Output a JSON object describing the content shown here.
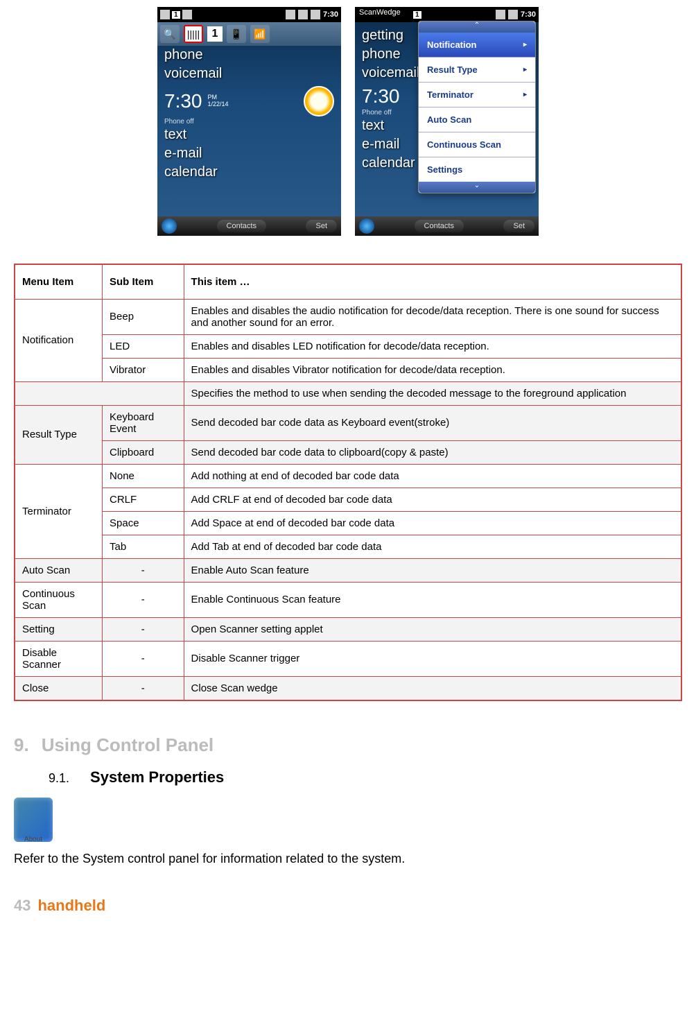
{
  "colors": {
    "table_border": "#c44",
    "heading_gray": "#bbbbbb",
    "brand_orange": "#e67817",
    "dropdown_item": "#1a3a8a",
    "dropdown_sel_bg_top": "#4a7aea",
    "dropdown_sel_bg_bot": "#2a4ab8"
  },
  "phones": {
    "statusbar": {
      "num1": "1",
      "time": "7:30"
    },
    "toolbar_num": "1",
    "home": {
      "items_top": [
        "phone",
        "voicemail"
      ],
      "time": "7:30",
      "pm": "PM",
      "date": "1/22/14",
      "phone_off": "Phone off",
      "items_bottom": [
        "text",
        "e-mail",
        "calendar"
      ]
    },
    "softbar": {
      "left": "Contacts",
      "right": "Set"
    },
    "right": {
      "title": "ScanWedge",
      "top_item": "getting",
      "dropdown": [
        {
          "label": "Notification",
          "arrow": true,
          "selected": true
        },
        {
          "label": "Result Type",
          "arrow": true
        },
        {
          "label": "Terminator",
          "arrow": true
        },
        {
          "label": "Auto Scan"
        },
        {
          "label": "Continuous Scan"
        },
        {
          "label": "Settings"
        }
      ]
    }
  },
  "table": {
    "headers": [
      "Menu Item",
      "Sub Item",
      "This item …"
    ],
    "groups": [
      {
        "menu": "Notification",
        "shade": false,
        "rows": [
          {
            "sub": "Beep",
            "desc": "Enables and disables the audio notification for decode/data reception. There is one sound for success and another sound for an error."
          },
          {
            "sub": "LED",
            "desc": "Enables and disables LED notification for decode/data reception."
          },
          {
            "sub": "Vibrator",
            "desc": "Enables and disables Vibrator notification for decode/data reception."
          }
        ]
      },
      {
        "intro": "Specifies the method to use when sending the decoded message to the foreground application",
        "menu": "Result Type",
        "shade": true,
        "rows": [
          {
            "sub": "Keyboard Event",
            "desc": "Send decoded bar code data as Keyboard event(stroke)"
          },
          {
            "sub": "Clipboard",
            "desc": "Send decoded bar code data to clipboard(copy & paste)"
          }
        ]
      },
      {
        "menu": "Terminator",
        "shade": false,
        "rows": [
          {
            "sub": "None",
            "desc": "Add nothing at end of decoded bar code data"
          },
          {
            "sub": "CRLF",
            "desc": "Add CRLF at end of decoded bar code data"
          },
          {
            "sub": "Space",
            "desc": "Add Space at end of decoded bar code data"
          },
          {
            "sub": "Tab",
            "desc": "Add Tab at end of decoded bar code data"
          }
        ]
      }
    ],
    "singles": [
      {
        "menu": "Auto Scan",
        "sub": "-",
        "desc": "Enable Auto Scan feature",
        "shade": true
      },
      {
        "menu": "Continuous Scan",
        "sub": "-",
        "desc": "Enable Continuous Scan feature",
        "shade": false
      },
      {
        "menu": "Setting",
        "sub": "-",
        "desc": "Open Scanner setting applet",
        "shade": true
      },
      {
        "menu": "Disable Scanner",
        "sub": "-",
        "desc": "Disable Scanner trigger",
        "shade": false
      },
      {
        "menu": "Close",
        "sub": "-",
        "desc": "Close Scan wedge",
        "shade": true
      }
    ]
  },
  "section9": {
    "num": "9.",
    "title": "Using Control Panel"
  },
  "section91": {
    "num": "9.1.",
    "title": "System Properties"
  },
  "body_text": "Refer to the System control panel for information related to the system.",
  "footer": {
    "page": "43",
    "brand": "handheld"
  }
}
